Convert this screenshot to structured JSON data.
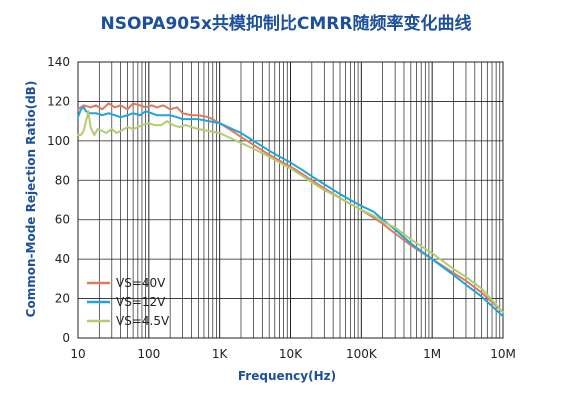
{
  "chart_data": {
    "type": "line",
    "title": "NSOPA905x共模抑制比CMRR随频率变化曲线",
    "xlabel": "Frequency(Hz)",
    "ylabel": "Common-Mode Rejection Ratio(dB)",
    "x_scale": "log",
    "xlim": [
      10,
      10000000
    ],
    "ylim": [
      0,
      140
    ],
    "x_ticks": [
      10,
      100,
      1000,
      10000,
      100000,
      1000000,
      10000000
    ],
    "x_tick_labels": [
      "10",
      "100",
      "1K",
      "10K",
      "100K",
      "1M",
      "10M"
    ],
    "y_ticks": [
      0,
      20,
      40,
      60,
      80,
      100,
      120,
      140
    ],
    "y_tick_labels": [
      "0",
      "20",
      "40",
      "60",
      "80",
      "100",
      "120",
      "140"
    ],
    "grid": true,
    "legend_position": "bottom-left",
    "series": [
      {
        "name": "VS=40V",
        "color": "#e07a5f",
        "x": [
          10,
          12,
          15,
          18,
          22,
          27,
          33,
          40,
          50,
          60,
          75,
          90,
          110,
          130,
          160,
          200,
          250,
          300,
          400,
          500,
          700,
          1000,
          1500,
          2000,
          3000,
          5000,
          7000,
          10000,
          15000,
          20000,
          30000,
          50000,
          70000,
          100000,
          150000,
          200000,
          300000,
          500000,
          1000000,
          2000000,
          3000000,
          5000000,
          10000000
        ],
        "y": [
          116,
          118,
          117,
          118,
          116,
          119,
          117,
          118,
          116,
          119,
          118,
          117,
          118,
          117,
          118,
          116,
          117,
          114,
          113,
          113,
          112,
          109,
          105,
          102,
          98,
          93,
          90,
          87,
          83,
          80,
          76,
          71,
          68,
          65,
          61,
          58,
          53,
          47,
          40,
          33,
          29,
          23,
          13
        ]
      },
      {
        "name": "VS=12V",
        "color": "#1ea6dc",
        "x": [
          10,
          11,
          12,
          13,
          15,
          18,
          22,
          27,
          33,
          40,
          50,
          60,
          75,
          90,
          110,
          130,
          160,
          200,
          250,
          300,
          400,
          500,
          700,
          1000,
          1500,
          2000,
          3000,
          5000,
          7000,
          10000,
          15000,
          20000,
          30000,
          50000,
          70000,
          100000,
          150000,
          200000,
          300000,
          500000,
          1000000,
          2000000,
          3000000,
          5000000,
          10000000
        ],
        "y": [
          112,
          116,
          117,
          115,
          114,
          114,
          113,
          114,
          113,
          112,
          113,
          114,
          113,
          115,
          114,
          113,
          113,
          113,
          112,
          111,
          111,
          111,
          110,
          109,
          106,
          104,
          100,
          95,
          92,
          89,
          85,
          82,
          78,
          73,
          70,
          67,
          64,
          60,
          55,
          48,
          40,
          32,
          27,
          21,
          11
        ]
      },
      {
        "name": "VS=4.5V",
        "color": "#b2cc6e",
        "x": [
          10,
          11,
          12,
          13,
          14,
          15,
          17,
          19,
          22,
          25,
          30,
          35,
          40,
          50,
          60,
          70,
          80,
          100,
          120,
          150,
          180,
          220,
          270,
          330,
          400,
          500,
          700,
          1000,
          1500,
          2000,
          3000,
          5000,
          7000,
          10000,
          15000,
          20000,
          30000,
          50000,
          70000,
          100000,
          150000,
          200000,
          300000,
          500000,
          1000000,
          2000000,
          3000000,
          5000000,
          10000000
        ],
        "y": [
          103,
          103,
          105,
          110,
          115,
          107,
          103,
          106,
          105,
          104,
          106,
          104,
          105,
          107,
          106,
          107,
          108,
          109,
          108,
          108,
          110,
          108,
          107,
          108,
          107,
          106,
          105,
          104,
          101,
          99,
          96,
          92,
          89,
          86,
          82,
          79,
          75,
          71,
          68,
          65,
          62,
          59,
          56,
          50,
          43,
          35,
          31,
          25,
          13
        ]
      }
    ]
  }
}
